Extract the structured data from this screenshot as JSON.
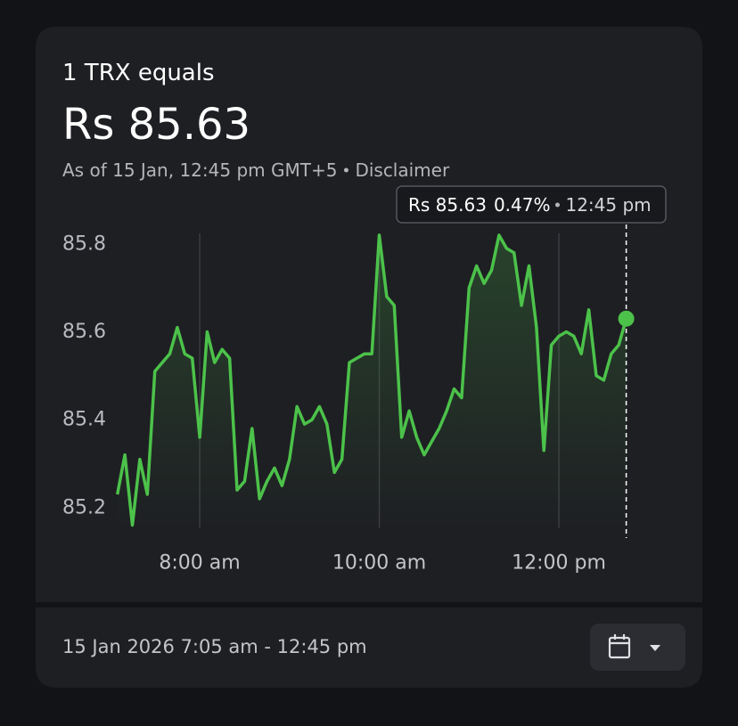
{
  "header": {
    "title": "1 TRX equals",
    "price": "Rs 85.63",
    "subtitle": "As of 15 Jan, 12:45 pm GMT+5",
    "disclaimer": "Disclaimer"
  },
  "chart_data": {
    "type": "line",
    "color": "#4cc24a",
    "grid": true,
    "x": [
      425,
      430,
      435,
      440,
      445,
      450,
      455,
      460,
      465,
      470,
      475,
      480,
      485,
      490,
      495,
      500,
      505,
      510,
      515,
      520,
      525,
      530,
      535,
      540,
      545,
      550,
      555,
      560,
      565,
      570,
      575,
      580,
      585,
      590,
      595,
      600,
      605,
      610,
      615,
      620,
      625,
      630,
      635,
      640,
      645,
      650,
      655,
      660,
      665,
      670,
      675,
      680,
      685,
      690,
      695,
      700,
      705,
      710,
      715,
      720,
      725,
      730,
      735,
      740,
      745,
      750,
      755,
      760,
      765
    ],
    "values": [
      85.23,
      85.32,
      85.16,
      85.31,
      85.23,
      85.51,
      85.53,
      85.55,
      85.61,
      85.55,
      85.54,
      85.36,
      85.6,
      85.53,
      85.56,
      85.54,
      85.24,
      85.26,
      85.38,
      85.22,
      85.26,
      85.29,
      85.25,
      85.31,
      85.43,
      85.39,
      85.4,
      85.43,
      85.39,
      85.28,
      85.31,
      85.53,
      85.54,
      85.55,
      85.55,
      85.82,
      85.68,
      85.66,
      85.36,
      85.42,
      85.36,
      85.32,
      85.35,
      85.38,
      85.42,
      85.47,
      85.45,
      85.7,
      85.75,
      85.71,
      85.74,
      85.82,
      85.79,
      85.78,
      85.66,
      85.75,
      85.61,
      85.33,
      85.57,
      85.59,
      85.6,
      85.59,
      85.55,
      85.65,
      85.5,
      85.49,
      85.55,
      85.57,
      85.63
    ],
    "xlim": [
      425,
      765
    ],
    "xticks": [
      {
        "value": 480,
        "label": "8:00 am"
      },
      {
        "value": 600,
        "label": "10:00 am"
      },
      {
        "value": 720,
        "label": "12:00 pm"
      }
    ],
    "ylim": [
      85.153,
      85.824
    ],
    "yticks": [
      85.2,
      85.4,
      85.6,
      85.8
    ],
    "tooltip": {
      "price": "Rs 85.63",
      "change": "0.47%",
      "time": "12:45 pm"
    }
  },
  "footer": {
    "range": "15 Jan 2026 7:05 am - 12:45 pm"
  }
}
